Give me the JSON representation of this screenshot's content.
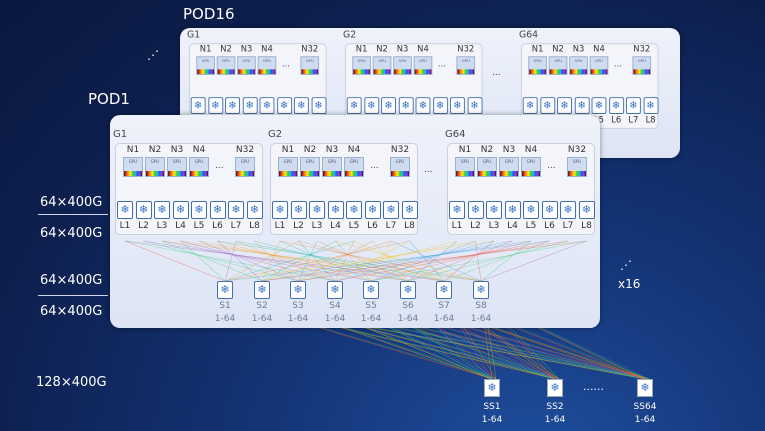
{
  "labels": {
    "pod_back": "POD16",
    "pod_front": "POD1",
    "multiplier": "x16",
    "ellipsis_dots": "......"
  },
  "bandwidth": [
    "64×400G",
    "64×400G",
    "64×400G",
    "64×400G",
    "128×400G"
  ],
  "groups": [
    "G1",
    "G2",
    "G64"
  ],
  "nodes": [
    "N1",
    "N2",
    "N3",
    "N4",
    "N32"
  ],
  "node_chip": "GPU",
  "node_gap": "...",
  "group_gap": "...",
  "leaves": [
    "L1",
    "L2",
    "L3",
    "L4",
    "L5",
    "L6",
    "L7",
    "L8"
  ],
  "spines": [
    {
      "name": "S1",
      "range": "1-64"
    },
    {
      "name": "S2",
      "range": "1-64"
    },
    {
      "name": "S3",
      "range": "1-64"
    },
    {
      "name": "S4",
      "range": "1-64"
    },
    {
      "name": "S5",
      "range": "1-64"
    },
    {
      "name": "S6",
      "range": "1-64"
    },
    {
      "name": "S7",
      "range": "1-64"
    },
    {
      "name": "S8",
      "range": "1-64"
    }
  ],
  "super_spines": [
    {
      "name": "SS1",
      "range": "1-64"
    },
    {
      "name": "SS2",
      "range": "1-64"
    },
    {
      "name": "SS64",
      "range": "1-64"
    }
  ],
  "switch_icon": "snowflake-switch-icon",
  "colors": {
    "background": "#0e1f4d",
    "pod_panel": "#e6ebf7",
    "switch_border": "#3f6fb0",
    "link_palette": [
      "#e74c3c",
      "#f39c12",
      "#f1c40f",
      "#2ecc71",
      "#1abc9c",
      "#3498db",
      "#9b59b6",
      "#e67e22"
    ]
  }
}
